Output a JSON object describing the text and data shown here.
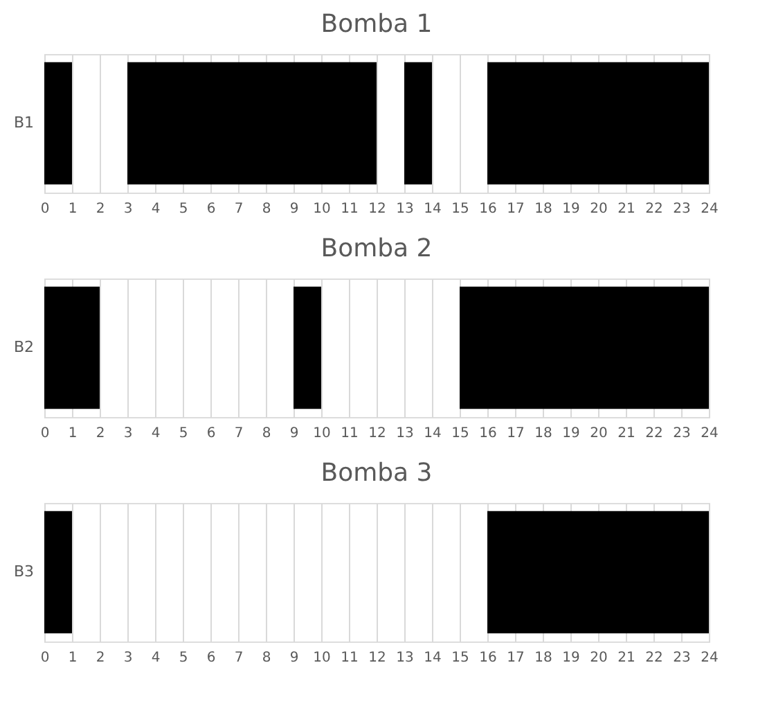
{
  "chart_data": [
    {
      "type": "bar",
      "title": "Bomba 1",
      "orientation": "horizontal",
      "categories": [
        "B1"
      ],
      "xlim": [
        0,
        24
      ],
      "xticks": [
        0,
        1,
        2,
        3,
        4,
        5,
        6,
        7,
        8,
        9,
        10,
        11,
        12,
        13,
        14,
        15,
        16,
        17,
        18,
        19,
        20,
        21,
        22,
        23,
        24
      ],
      "grid": "x",
      "series": [
        {
          "color": "#000000",
          "values": [
            1
          ],
          "base": [
            0
          ]
        },
        {
          "color": "#000000",
          "values": [
            9
          ],
          "base": [
            3
          ]
        },
        {
          "color": "#000000",
          "values": [
            1
          ],
          "base": [
            13
          ]
        },
        {
          "color": "#000000",
          "values": [
            8
          ],
          "base": [
            16
          ]
        }
      ]
    },
    {
      "type": "bar",
      "title": "Bomba 2",
      "orientation": "horizontal",
      "categories": [
        "B2"
      ],
      "xlim": [
        0,
        24
      ],
      "xticks": [
        0,
        1,
        2,
        3,
        4,
        5,
        6,
        7,
        8,
        9,
        10,
        11,
        12,
        13,
        14,
        15,
        16,
        17,
        18,
        19,
        20,
        21,
        22,
        23,
        24
      ],
      "grid": "x",
      "series": [
        {
          "color": "#000000",
          "values": [
            2
          ],
          "base": [
            0
          ]
        },
        {
          "color": "#000000",
          "values": [
            1
          ],
          "base": [
            9
          ]
        },
        {
          "color": "#000000",
          "values": [
            9
          ],
          "base": [
            15
          ]
        }
      ]
    },
    {
      "type": "bar",
      "title": "Bomba 3",
      "orientation": "horizontal",
      "categories": [
        "B3"
      ],
      "xlim": [
        0,
        24
      ],
      "xticks": [
        0,
        1,
        2,
        3,
        4,
        5,
        6,
        7,
        8,
        9,
        10,
        11,
        12,
        13,
        14,
        15,
        16,
        17,
        18,
        19,
        20,
        21,
        22,
        23,
        24
      ],
      "grid": "x",
      "series": [
        {
          "color": "#000000",
          "values": [
            1
          ],
          "base": [
            0
          ]
        },
        {
          "color": "#000000",
          "values": [
            8
          ],
          "base": [
            16
          ]
        }
      ]
    }
  ]
}
